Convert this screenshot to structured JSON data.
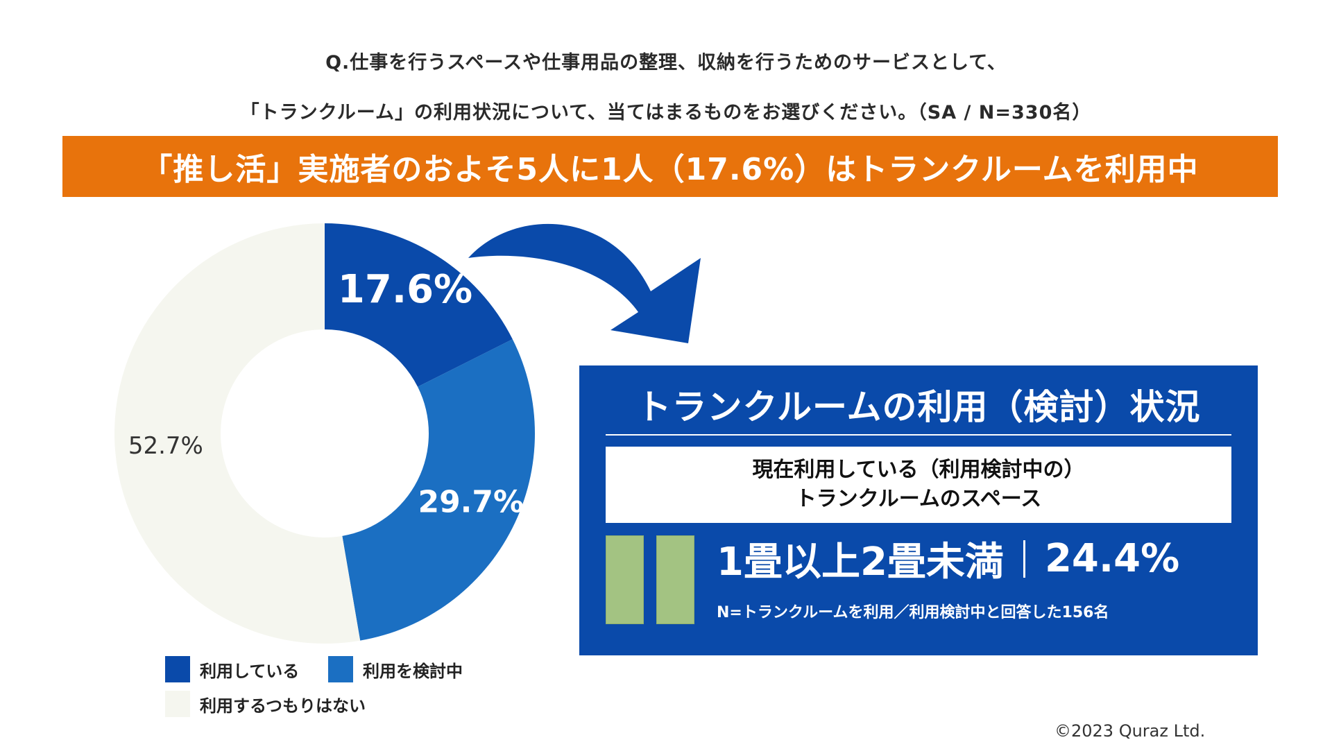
{
  "header": {
    "question_line1": "Q.仕事を行うスペースや仕事用品の整理、収納を行うためのサービスとして、",
    "question_line2": "「トランクルーム」の利用状況について、当てはまるものをお選びください。（SA / N=330名）"
  },
  "banner": {
    "text": "「推し活」実施者のおよそ5人に1人（17.6%）はトランクルームを利用中",
    "color": "#e8730c"
  },
  "chart_data": {
    "type": "pie",
    "subtype": "donut",
    "categories": [
      "利用している",
      "利用を検討中",
      "利用するつもりはない"
    ],
    "values": [
      17.6,
      29.7,
      52.7
    ],
    "labels": [
      "17.6%",
      "29.7%",
      "52.7%"
    ],
    "colors": [
      "#0a4aaa",
      "#1b6fc2",
      "#f5f6ef"
    ],
    "unit": "%",
    "legend_position": "bottom"
  },
  "panel": {
    "title": "トランクルームの利用（検討）状況",
    "box_line1": "現在利用している（利用検討中の）",
    "box_line2": "トランクルームのスペース",
    "size_label": "1畳以上2畳未満",
    "percent": "24.4%",
    "percent_value": 24.4,
    "note": "N=トランクルームを利用／利用検討中と回答した156名",
    "color": "#0a4aaa",
    "tatami_icon": "tatami-mat-icon"
  },
  "footer": {
    "copyright": "©2023 Quraz Ltd."
  }
}
